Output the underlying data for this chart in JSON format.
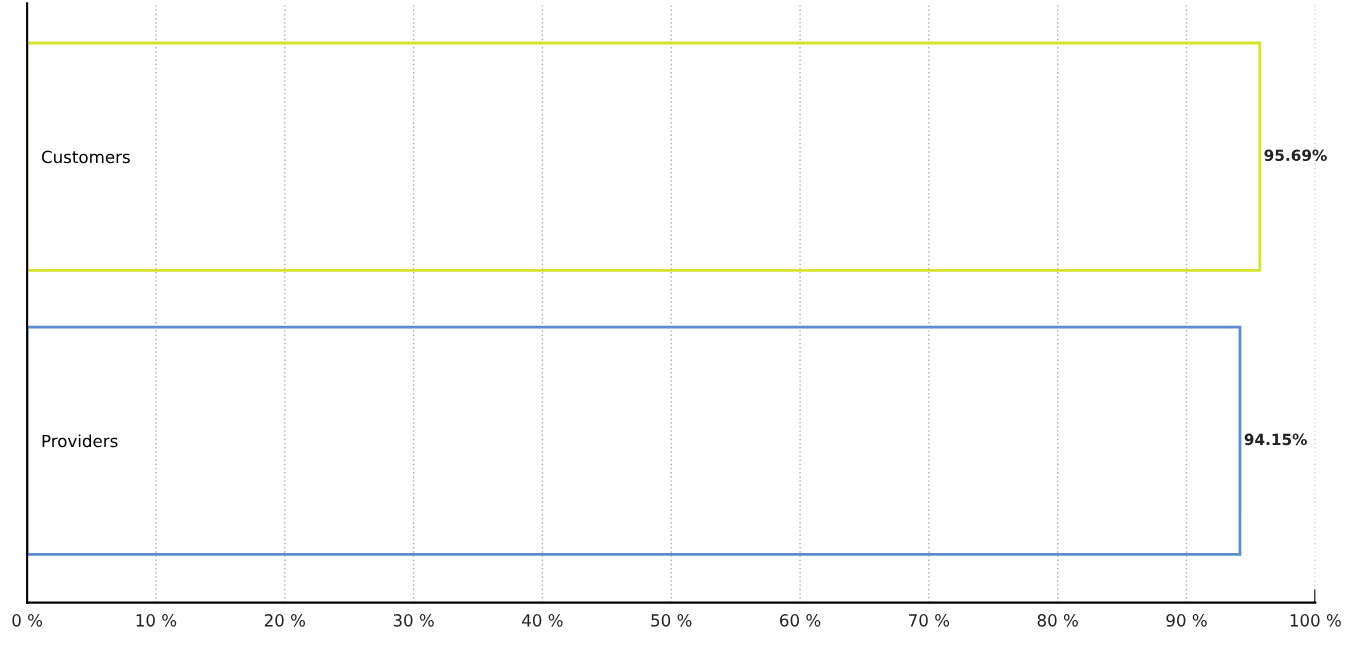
{
  "chart_data": {
    "type": "bar",
    "orientation": "horizontal",
    "categories": [
      "Customers",
      "Providers"
    ],
    "values": [
      95.69,
      94.15
    ],
    "colors": [
      "#d8e22c",
      "#5b8bd0"
    ],
    "value_labels": [
      "95.69%",
      "94.15%"
    ],
    "xlim": [
      0,
      100
    ],
    "xticks": [
      {
        "value": 0,
        "label": "0 %"
      },
      {
        "value": 10,
        "label": "10 %"
      },
      {
        "value": 20,
        "label": "20 %"
      },
      {
        "value": 30,
        "label": "30 %"
      },
      {
        "value": 40,
        "label": "40 %"
      },
      {
        "value": 50,
        "label": "50 %"
      },
      {
        "value": 60,
        "label": "60 %"
      },
      {
        "value": 70,
        "label": "70 %"
      },
      {
        "value": 80,
        "label": "80 %"
      },
      {
        "value": 90,
        "label": "90 %"
      },
      {
        "value": 100,
        "label": "100 %"
      }
    ],
    "grid": "x",
    "legend": false
  }
}
